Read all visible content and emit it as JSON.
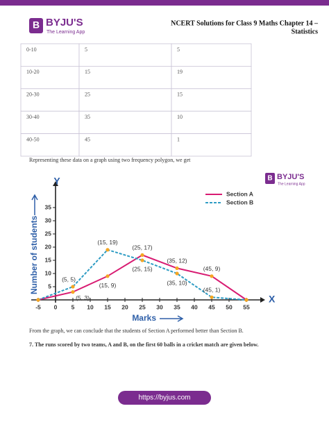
{
  "header": {
    "logo": {
      "brand": "BYJU'S",
      "tagline": "The Learning App"
    },
    "title_lines": [
      "NCERT Solutions for Class 9 Maths Chapter 14 –",
      "Statistics"
    ]
  },
  "table": {
    "rows": [
      [
        "0-10",
        "5",
        "5"
      ],
      [
        "10-20",
        "15",
        "19"
      ],
      [
        "20-30",
        "25",
        "15"
      ],
      [
        "30-40",
        "35",
        "10"
      ],
      [
        "40-50",
        "45",
        "1"
      ]
    ]
  },
  "intro": "Representing these data on a graph using two frequency polygon, we get",
  "chart_logo": {
    "brand": "BYJU'S",
    "tagline": "The Learning App"
  },
  "chart_data": {
    "type": "line",
    "x_axis_letter": "X",
    "y_axis_letter": "Y",
    "xlabel": "Marks",
    "ylabel": "Number of students",
    "x": [
      -5,
      5,
      15,
      25,
      35,
      45,
      55
    ],
    "series": [
      {
        "name": "Section A",
        "color": "#d81b72",
        "dashed": false,
        "values": [
          0,
          3,
          9,
          17,
          12,
          9,
          0
        ],
        "point_labels": [
          null,
          "(5, 3)",
          "(15, 9)",
          "(25, 17)",
          "(35, 12)",
          "(45, 9)",
          null
        ]
      },
      {
        "name": "Section B",
        "color": "#2e9cc4",
        "dashed": true,
        "values": [
          0,
          5,
          19,
          15,
          10,
          1,
          0
        ],
        "point_labels": [
          null,
          "(5, 5)",
          "(15, 19)",
          "(25, 15)",
          "(35, 10)",
          "(45, 1)",
          null
        ]
      }
    ],
    "marker_color": "#f5a623",
    "xlim": [
      -5,
      55
    ],
    "ylim": [
      0,
      40
    ],
    "xticks": [
      -5,
      0,
      5,
      10,
      15,
      20,
      25,
      30,
      35,
      40,
      45,
      50,
      55
    ],
    "yticks": [
      5,
      10,
      15,
      20,
      25,
      30,
      35
    ]
  },
  "conclusion": "From the graph, we can conclude that the students of Section A performed better than Section B.",
  "question": {
    "number": "7.",
    "text": "The runs scored by two teams, A and B, on the first 60 balls in a cricket match are given below."
  },
  "footer": {
    "url": "https://byjus.com"
  }
}
